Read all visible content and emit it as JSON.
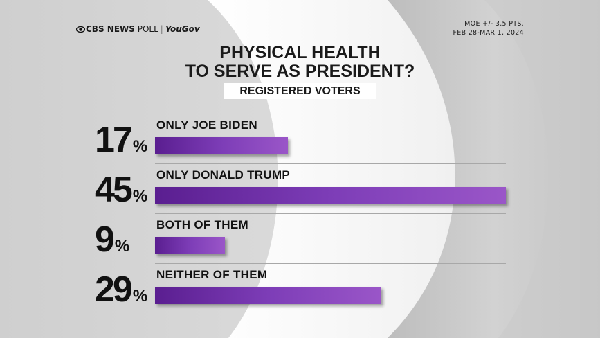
{
  "header": {
    "brand_cbs": "CBS NEWS",
    "brand_poll": "POLL",
    "brand_yougov": "YouGov",
    "moe": "MOE +/- 3.5 PTS.",
    "dates": "FEB 28-MAR 1, 2024"
  },
  "chart_data": {
    "type": "bar",
    "orientation": "horizontal",
    "title_line1": "PHYSICAL HEALTH",
    "title_line2": "TO SERVE AS PRESIDENT?",
    "subtitle": "REGISTERED VOTERS",
    "categories": [
      "ONLY JOE BIDEN",
      "ONLY DONALD TRUMP",
      "BOTH OF THEM",
      "NEITHER OF THEM"
    ],
    "values": [
      17,
      45,
      9,
      29
    ],
    "unit": "%",
    "xlim": [
      0,
      45
    ],
    "bar_color": "#7d3db7"
  }
}
